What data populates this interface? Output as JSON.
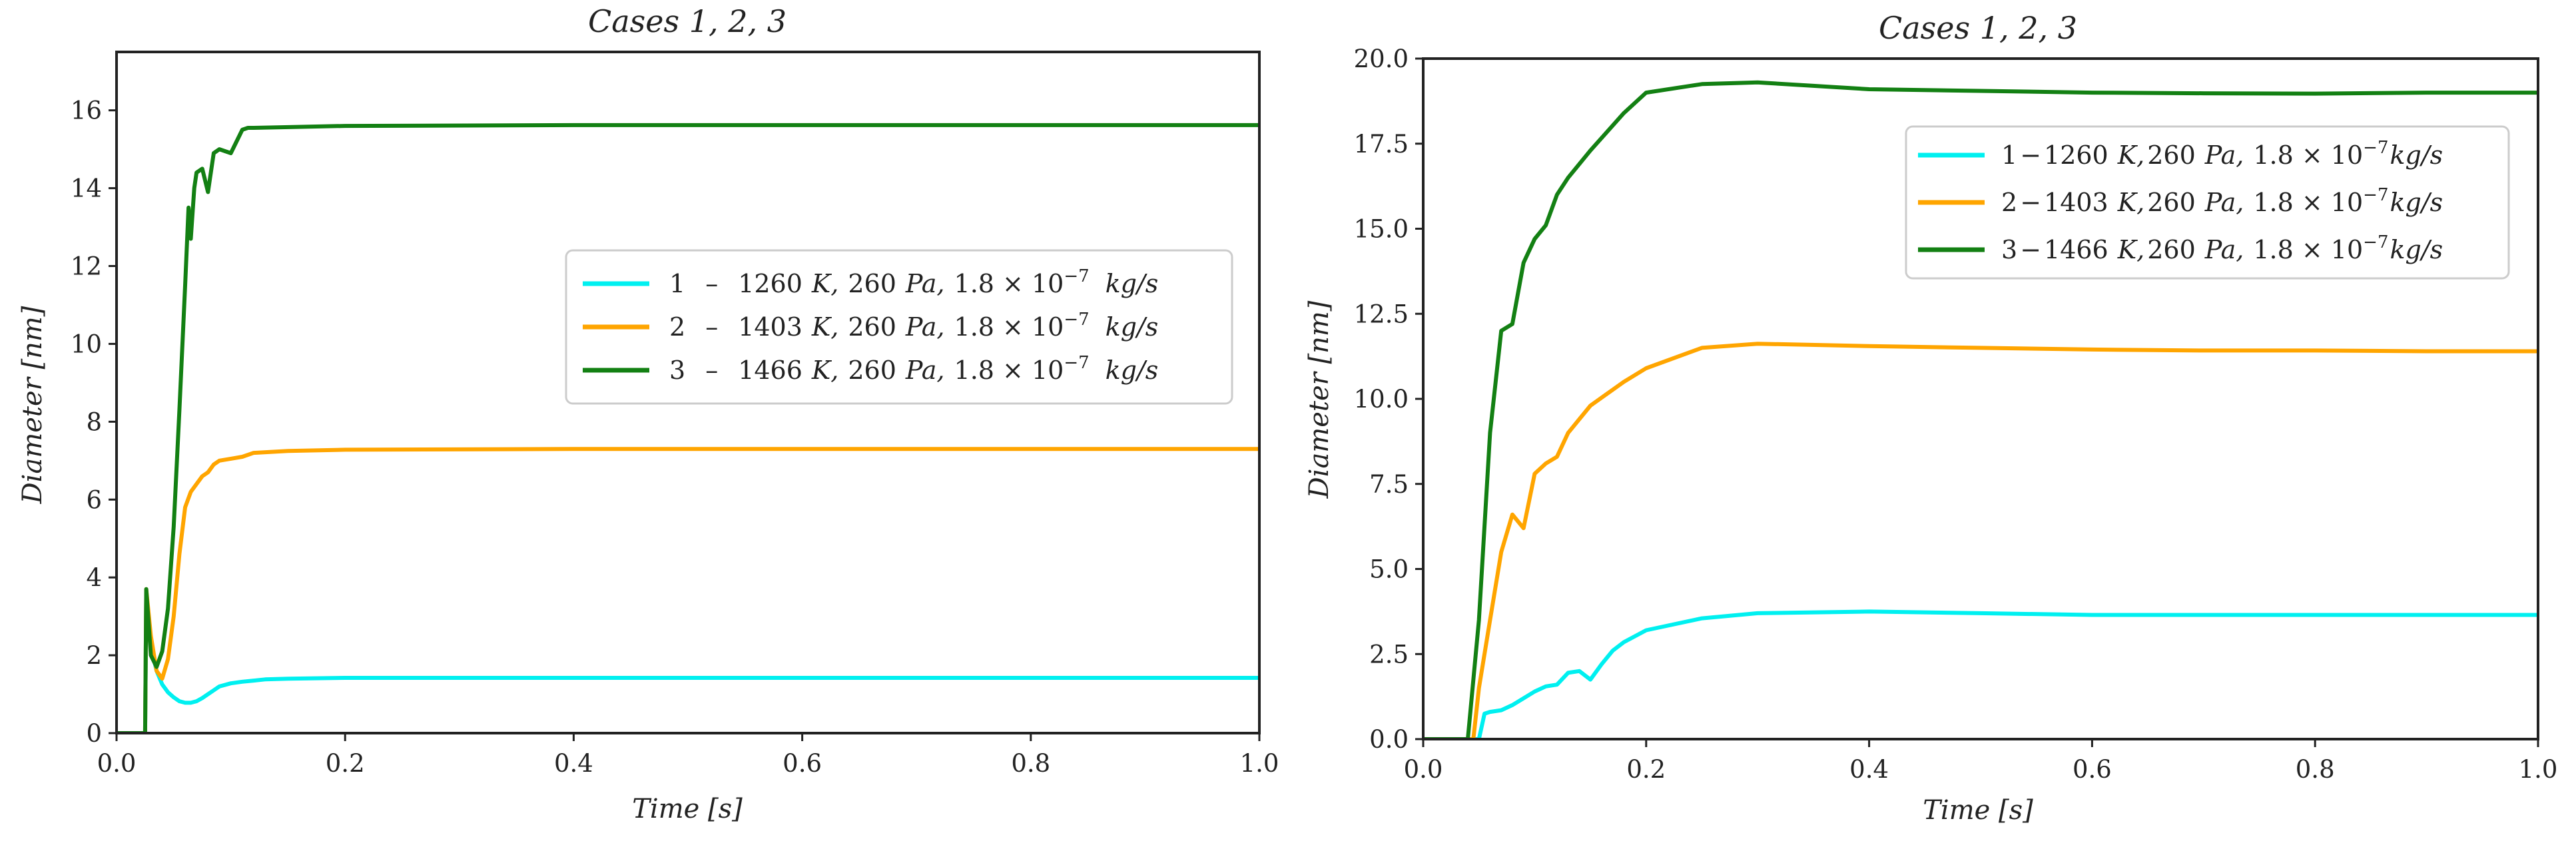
{
  "chart_data": [
    {
      "type": "line",
      "title": "Cases 1, 2, 3",
      "xlabel": "Time [s]",
      "ylabel": "Diameter [nm]",
      "xlim": [
        0,
        1.0
      ],
      "ylim": [
        0,
        17.5
      ],
      "xticks": [
        0,
        0.2,
        0.4,
        0.6,
        0.8,
        1.0
      ],
      "xtick_labels": [
        "0.0",
        "0.2",
        "0.4",
        "0.6",
        "0.8",
        "1.0"
      ],
      "yticks": [
        0,
        2,
        4,
        6,
        8,
        10,
        12,
        14,
        16
      ],
      "ytick_labels": [
        "0",
        "2",
        "4",
        "6",
        "8",
        "10",
        "12",
        "14",
        "16"
      ],
      "legend_position": "center-right",
      "series": [
        {
          "name": "1 – 1260 K, 260 Pa, 1.8×10^-7 kg/s",
          "legend": {
            "case": "1",
            "sep": "–",
            "temp": "1260",
            "t_unit": "K,",
            "press": "260",
            "p_unit": "Pa,",
            "rate": "1.8 × 10",
            "exp": "−7",
            "r_unit": "kg/s"
          },
          "color": "#00f0f0",
          "x": [
            0,
            0.025,
            0.026,
            0.028,
            0.031,
            0.035,
            0.04,
            0.045,
            0.05,
            0.055,
            0.06,
            0.065,
            0.07,
            0.075,
            0.08,
            0.085,
            0.09,
            0.1,
            0.11,
            0.12,
            0.13,
            0.15,
            0.2,
            0.3,
            0.5,
            0.7,
            1.0
          ],
          "y": [
            0,
            0,
            3.6,
            2.8,
            2.1,
            1.6,
            1.25,
            1.05,
            0.92,
            0.82,
            0.78,
            0.78,
            0.82,
            0.9,
            1.0,
            1.1,
            1.2,
            1.28,
            1.32,
            1.35,
            1.38,
            1.4,
            1.42,
            1.42,
            1.42,
            1.42,
            1.42
          ]
        },
        {
          "name": "2 – 1403 K, 260 Pa, 1.8×10^-7 kg/s",
          "legend": {
            "case": "2",
            "sep": "–",
            "temp": "1403",
            "t_unit": "K,",
            "press": "260",
            "p_unit": "Pa,",
            "rate": "1.8 × 10",
            "exp": "−7",
            "r_unit": "kg/s"
          },
          "color": "#ffa500",
          "x": [
            0,
            0.025,
            0.026,
            0.03,
            0.035,
            0.04,
            0.045,
            0.05,
            0.055,
            0.06,
            0.065,
            0.07,
            0.075,
            0.08,
            0.085,
            0.09,
            0.1,
            0.11,
            0.12,
            0.15,
            0.2,
            0.4,
            0.6,
            0.8,
            1.0
          ],
          "y": [
            0,
            0,
            3.7,
            2.5,
            1.6,
            1.4,
            1.9,
            3.0,
            4.6,
            5.8,
            6.2,
            6.4,
            6.6,
            6.7,
            6.9,
            7.0,
            7.05,
            7.1,
            7.2,
            7.25,
            7.28,
            7.3,
            7.3,
            7.3,
            7.3
          ]
        },
        {
          "name": "3 – 1466 K, 260 Pa, 1.8×10^-7 kg/s",
          "legend": {
            "case": "3",
            "sep": "–",
            "temp": "1466",
            "t_unit": "K,",
            "press": "260",
            "p_unit": "Pa,",
            "rate": "1.8 × 10",
            "exp": "−7",
            "r_unit": "kg/s"
          },
          "color": "#138013",
          "x": [
            0,
            0.025,
            0.026,
            0.03,
            0.035,
            0.04,
            0.045,
            0.05,
            0.055,
            0.06,
            0.063,
            0.065,
            0.068,
            0.07,
            0.075,
            0.08,
            0.085,
            0.09,
            0.1,
            0.105,
            0.11,
            0.115,
            0.12,
            0.2,
            0.4,
            0.6,
            0.8,
            1.0
          ],
          "y": [
            0,
            0,
            3.7,
            2.0,
            1.7,
            2.1,
            3.2,
            5.3,
            8.3,
            11.5,
            13.5,
            12.7,
            14.0,
            14.4,
            14.5,
            13.9,
            14.9,
            15.0,
            14.9,
            15.2,
            15.5,
            15.55,
            15.55,
            15.6,
            15.62,
            15.62,
            15.62,
            15.62
          ]
        }
      ]
    },
    {
      "type": "line",
      "title": "Cases 1, 2, 3",
      "xlabel": "Time [s]",
      "ylabel": "Diameter [nm]",
      "xlim": [
        0,
        1.0
      ],
      "ylim": [
        0,
        20.0
      ],
      "xticks": [
        0,
        0.2,
        0.4,
        0.6,
        0.8,
        1.0
      ],
      "xtick_labels": [
        "0.0",
        "0.2",
        "0.4",
        "0.6",
        "0.8",
        "1.0"
      ],
      "yticks": [
        0,
        2.5,
        5,
        7.5,
        10,
        12.5,
        15,
        17.5,
        20
      ],
      "ytick_labels": [
        "0.0",
        "2.5",
        "5.0",
        "7.5",
        "10.0",
        "12.5",
        "15.0",
        "17.5",
        "20.0"
      ],
      "legend_position": "upper-right",
      "series": [
        {
          "name": "1 – 1260 K, 260 Pa, 1.8×10^-7 kg/s",
          "legend": {
            "case": "1",
            "sep": "−",
            "temp": "1260",
            "t_unit": "K,",
            "press": "260",
            "p_unit": "Pa,",
            "rate": "1.8 × 10",
            "exp": "−7",
            "r_unit": "kg/s"
          },
          "color": "#00f0f0",
          "x": [
            0,
            0.05,
            0.055,
            0.06,
            0.07,
            0.08,
            0.09,
            0.1,
            0.11,
            0.12,
            0.13,
            0.14,
            0.15,
            0.16,
            0.17,
            0.18,
            0.2,
            0.25,
            0.3,
            0.4,
            0.5,
            0.6,
            0.7,
            0.8,
            0.9,
            1.0
          ],
          "y": [
            0,
            0,
            0.75,
            0.8,
            0.85,
            1.0,
            1.2,
            1.4,
            1.55,
            1.6,
            1.95,
            2.0,
            1.75,
            2.2,
            2.6,
            2.85,
            3.2,
            3.55,
            3.7,
            3.75,
            3.7,
            3.65,
            3.65,
            3.65,
            3.65,
            3.65
          ]
        },
        {
          "name": "2 – 1403 K, 260 Pa, 1.8×10^-7 kg/s",
          "legend": {
            "case": "2",
            "sep": "−",
            "temp": "1403",
            "t_unit": "K,",
            "press": "260",
            "p_unit": "Pa,",
            "rate": "1.8 × 10",
            "exp": "−7",
            "r_unit": "kg/s"
          },
          "color": "#ffa500",
          "x": [
            0,
            0.045,
            0.05,
            0.06,
            0.07,
            0.08,
            0.09,
            0.1,
            0.11,
            0.12,
            0.13,
            0.15,
            0.18,
            0.2,
            0.25,
            0.3,
            0.4,
            0.5,
            0.6,
            0.7,
            0.8,
            0.9,
            1.0
          ],
          "y": [
            0,
            0,
            1.5,
            3.5,
            5.5,
            6.6,
            6.2,
            7.8,
            8.1,
            8.3,
            9.0,
            9.8,
            10.5,
            10.9,
            11.5,
            11.62,
            11.55,
            11.5,
            11.45,
            11.42,
            11.42,
            11.4,
            11.4
          ]
        },
        {
          "name": "3 – 1466 K, 260 Pa, 1.8×10^-7 kg/s",
          "legend": {
            "case": "3",
            "sep": "−",
            "temp": "1466",
            "t_unit": "K,",
            "press": "260",
            "p_unit": "Pa,",
            "rate": "1.8 × 10",
            "exp": "−7",
            "r_unit": "kg/s"
          },
          "color": "#138013",
          "x": [
            0,
            0.04,
            0.05,
            0.06,
            0.07,
            0.08,
            0.09,
            0.1,
            0.11,
            0.12,
            0.13,
            0.15,
            0.18,
            0.2,
            0.25,
            0.3,
            0.35,
            0.4,
            0.5,
            0.6,
            0.7,
            0.8,
            0.9,
            1.0
          ],
          "y": [
            0,
            0,
            3.5,
            9.0,
            12.0,
            12.2,
            14.0,
            14.7,
            15.1,
            16.0,
            16.5,
            17.3,
            18.4,
            19.0,
            19.25,
            19.3,
            19.2,
            19.1,
            19.05,
            19.0,
            18.98,
            18.97,
            19.0,
            19.0
          ]
        }
      ]
    }
  ]
}
